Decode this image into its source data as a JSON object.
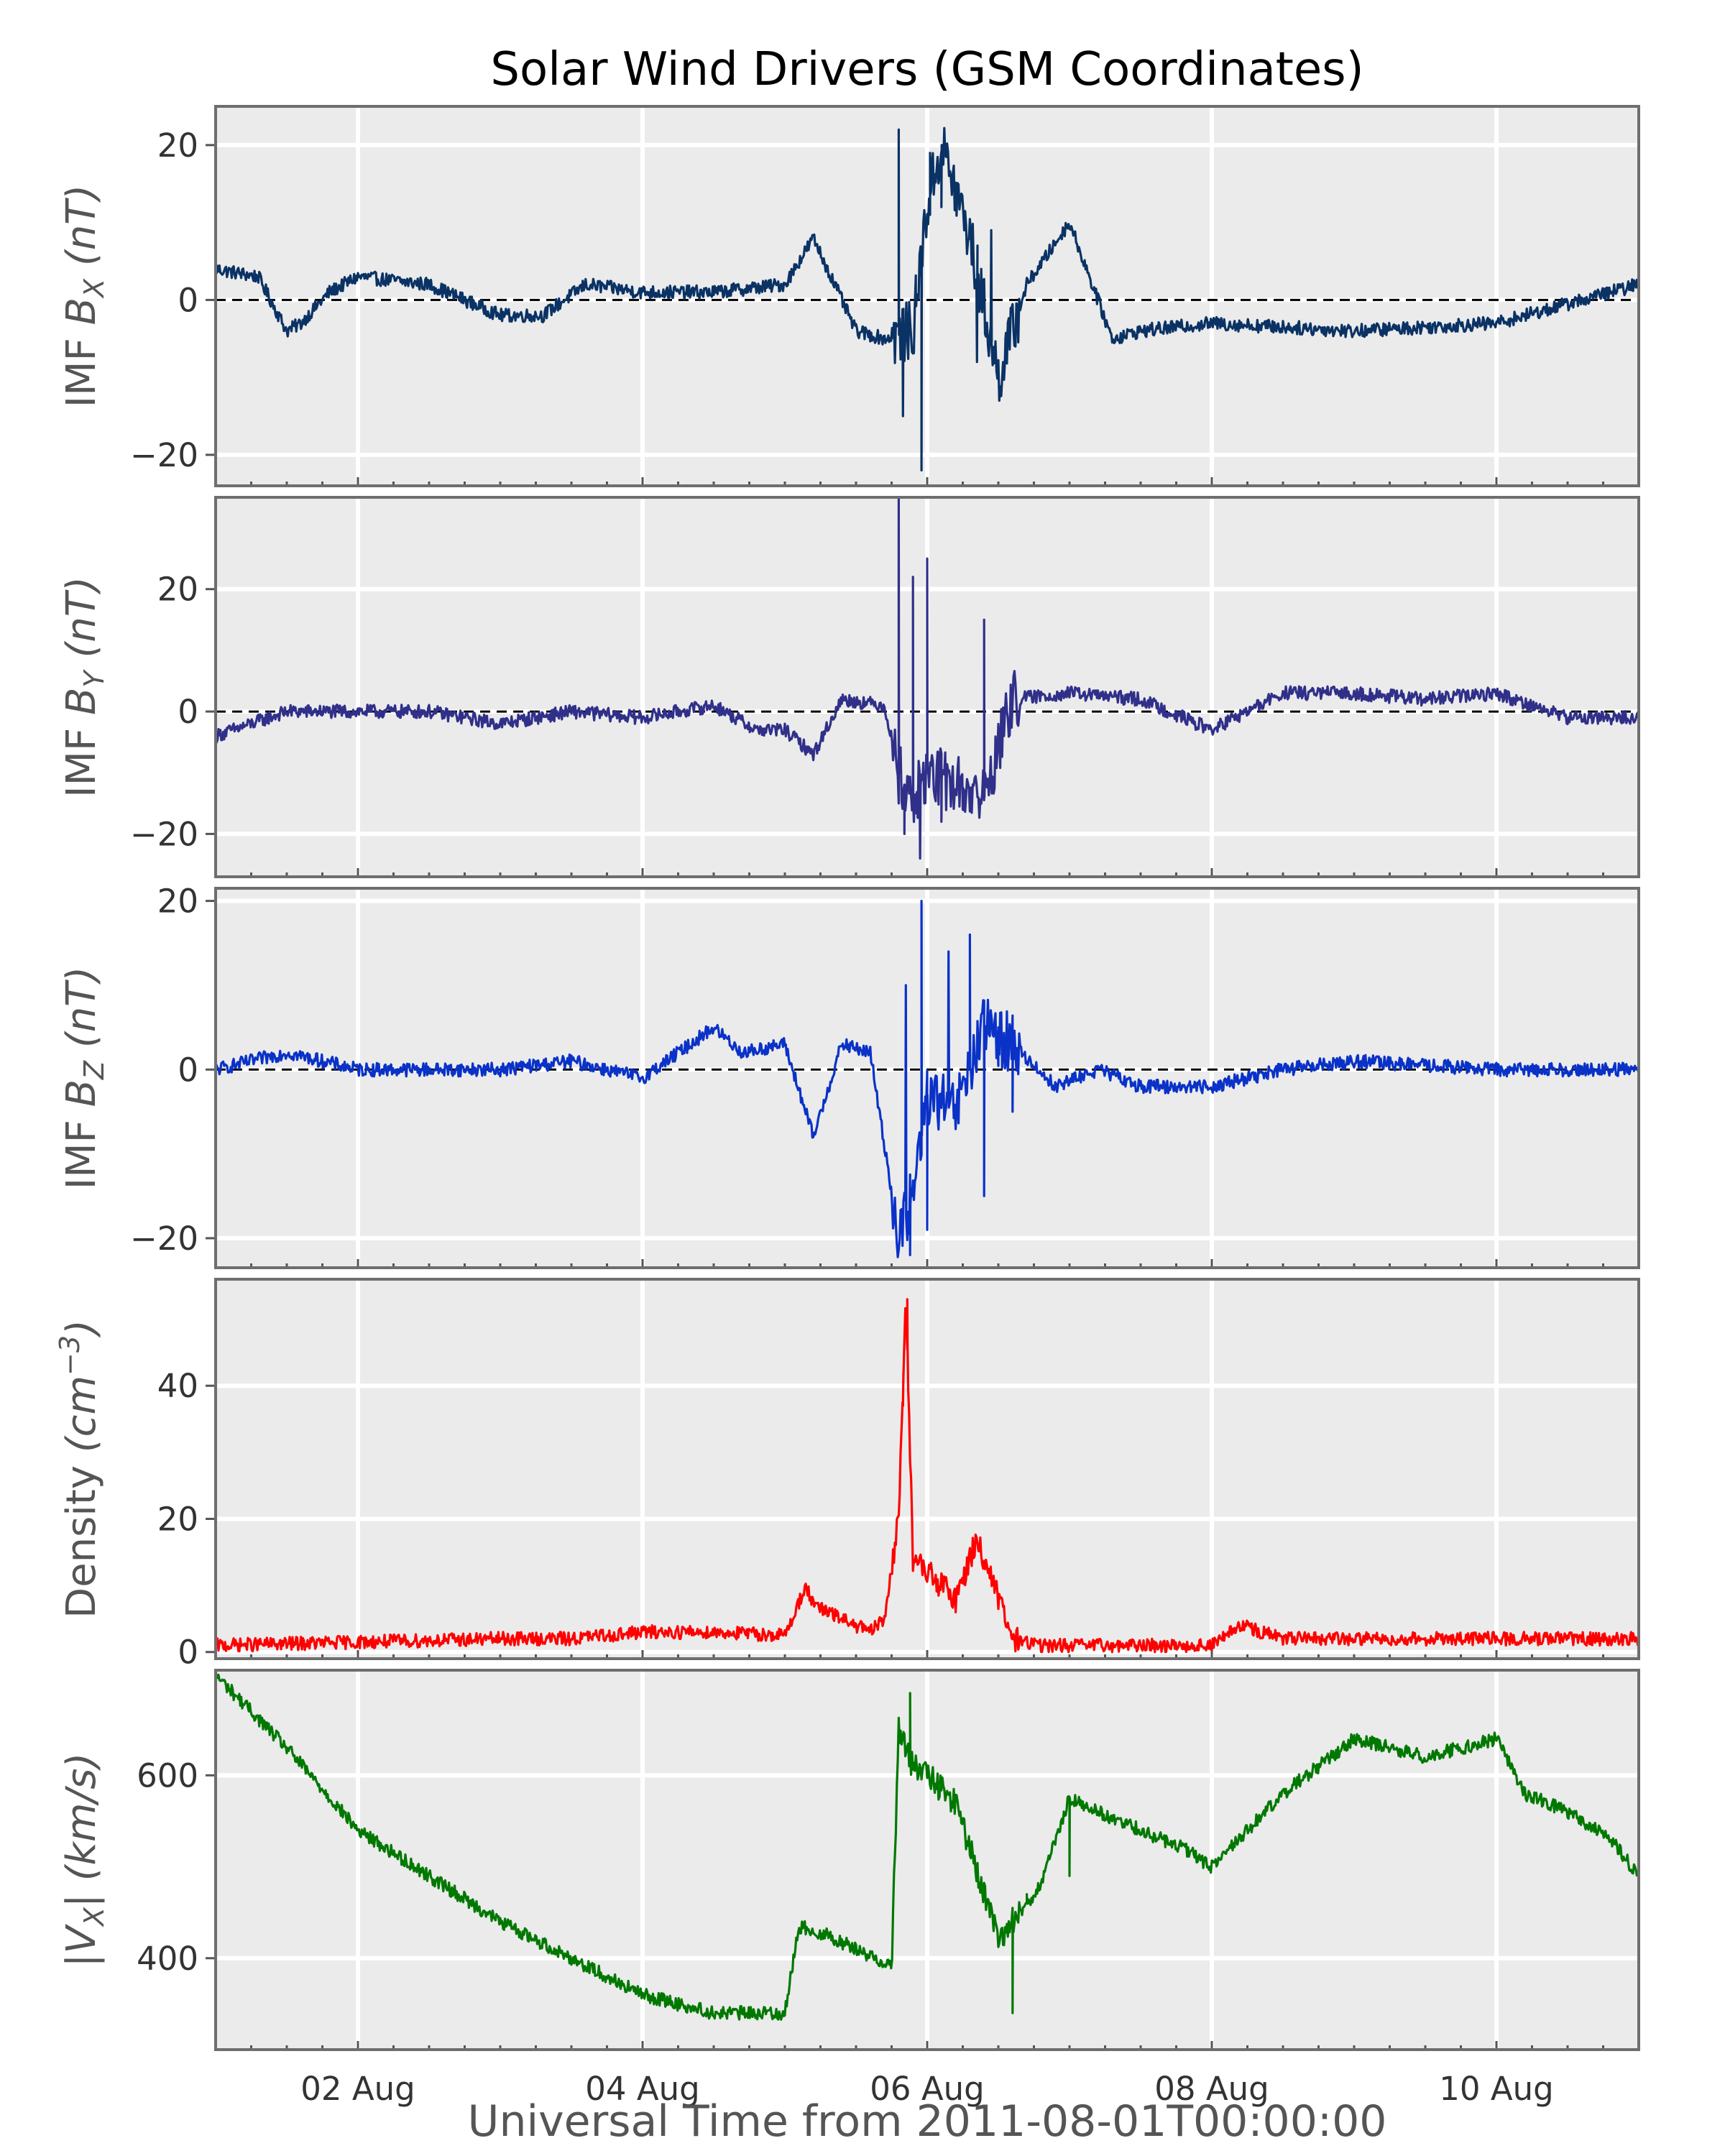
{
  "colors": {
    "background": "#ebebeb",
    "grid": "#ffffff",
    "frame": "#6e6e6e"
  },
  "chart_data": {
    "type": "line",
    "title": "Solar Wind Drivers (GSM Coordinates)",
    "xlabel": "Universal Time from 2011-08-01T00:00:00",
    "x_tick_labels": [
      "02 Aug",
      "04 Aug",
      "06 Aug",
      "08 Aug",
      "10 Aug"
    ],
    "x_ticks_days": [
      1,
      3,
      5,
      7,
      9
    ],
    "xlim_days": [
      0,
      10
    ],
    "grid": true,
    "panels": [
      {
        "ylabel": "IMF B_X (nT)",
        "ylabel_main": "IMF ",
        "ylabel_var": "B",
        "ylabel_sub": "X",
        "ylabel_unit": " (nT)",
        "color": "#0a3264",
        "ylim": [
          -24,
          25
        ],
        "yticks": [
          -20,
          0,
          20
        ],
        "ytick_labels": [
          "−20",
          "0",
          "20"
        ],
        "zero_line": true,
        "series": [
          {
            "x": [
              0.0,
              0.3,
              0.5,
              0.6,
              0.8,
              1.0,
              1.5,
              2.0,
              2.3,
              2.6,
              3.0,
              3.5,
              4.0,
              4.2,
              4.4,
              4.5,
              4.7,
              4.9,
              5.0,
              5.1,
              5.3,
              5.5,
              5.7,
              6.0,
              6.3,
              6.5,
              7.0,
              8.0,
              9.0,
              10.0
            ],
            "y": [
              4,
              3,
              -4,
              -3,
              1,
              3,
              2,
              -2,
              -2,
              2,
              1,
              1,
              2,
              8,
              0,
              -4,
              -5,
              -4,
              12,
              20,
              8,
              -10,
              2,
              10,
              -5,
              -4,
              -3,
              -4,
              -3,
              2
            ],
            "spikes": [
              [
                4.8,
                22
              ],
              [
                4.83,
                -15
              ],
              [
                4.92,
                0
              ],
              [
                4.96,
                -22
              ],
              [
                5.02,
                19
              ],
              [
                5.1,
                12
              ],
              [
                5.2,
                15
              ],
              [
                5.35,
                -8
              ],
              [
                5.45,
                9
              ],
              [
                5.55,
                -5
              ]
            ]
          }
        ]
      },
      {
        "ylabel": "IMF B_Y (nT)",
        "ylabel_main": "IMF ",
        "ylabel_var": "B",
        "ylabel_sub": "Y",
        "ylabel_unit": " (nT)",
        "color": "#30308a",
        "ylim": [
          -27,
          35
        ],
        "yticks": [
          -20,
          0,
          20
        ],
        "ytick_labels": [
          "−20",
          "0",
          "20"
        ],
        "zero_line": true,
        "series": [
          {
            "x": [
              0.0,
              0.5,
              1.0,
              1.5,
              2.0,
              2.5,
              3.0,
              3.5,
              3.8,
              4.0,
              4.2,
              4.4,
              4.7,
              4.8,
              4.9,
              5.0,
              5.2,
              5.4,
              5.6,
              6.0,
              6.5,
              7.0,
              7.5,
              8.0,
              8.5,
              9.0,
              9.5,
              10.0
            ],
            "y": [
              -4,
              0,
              0,
              0,
              -2,
              0,
              -1,
              1,
              -3,
              -3,
              -7,
              2,
              1,
              -10,
              -15,
              -10,
              -12,
              -14,
              2,
              3,
              2,
              -3,
              3,
              3,
              2,
              3,
              -1,
              -1
            ],
            "spikes": [
              [
                4.8,
                35
              ],
              [
                4.84,
                -20
              ],
              [
                4.9,
                22
              ],
              [
                4.95,
                -24
              ],
              [
                5.0,
                25
              ],
              [
                5.1,
                -18
              ],
              [
                5.4,
                15
              ],
              [
                5.25,
                -16
              ]
            ]
          }
        ]
      },
      {
        "ylabel": "IMF B_Z (nT)",
        "ylabel_main": "IMF ",
        "ylabel_var": "B",
        "ylabel_sub": "Z",
        "ylabel_unit": " (nT)",
        "color": "#0a32c8",
        "ylim": [
          -23.5,
          21.5
        ],
        "yticks": [
          -20,
          0,
          20
        ],
        "ytick_labels": [
          "−20",
          "0",
          "20"
        ],
        "zero_line": true,
        "series": [
          {
            "x": [
              0.0,
              0.5,
              1.0,
              1.5,
              2.0,
              2.5,
              3.0,
              3.5,
              3.7,
              4.0,
              4.2,
              4.4,
              4.6,
              4.8,
              4.9,
              5.0,
              5.2,
              5.4,
              5.6,
              5.9,
              6.2,
              6.5,
              7.0,
              7.5,
              8.0,
              9.0,
              10.0
            ],
            "y": [
              0,
              2,
              0,
              0,
              0,
              1,
              -1,
              5,
              2,
              3,
              -8,
              3,
              2,
              -20,
              -15,
              -3,
              -5,
              5,
              3,
              -2,
              0,
              -2,
              -2,
              0,
              1,
              0,
              0
            ],
            "spikes": [
              [
                4.85,
                10
              ],
              [
                4.88,
                -22
              ],
              [
                4.96,
                20
              ],
              [
                5.0,
                -19
              ],
              [
                5.15,
                14
              ],
              [
                5.3,
                16
              ],
              [
                5.4,
                -15
              ],
              [
                5.5,
                5
              ],
              [
                5.6,
                -5
              ]
            ]
          }
        ]
      },
      {
        "ylabel": "Density (cm^-3)",
        "ylabel_main": "Density ",
        "ylabel_var": "(cm",
        "ylabel_sup": "−3",
        "ylabel_unit": ")",
        "color": "#ff0000",
        "ylim": [
          -1,
          56
        ],
        "yticks": [
          0,
          20,
          40
        ],
        "ytick_labels": [
          "0",
          "20",
          "40"
        ],
        "zero_line": false,
        "series": [
          {
            "x": [
              0.0,
              1.0,
              2.0,
              2.5,
              3.0,
              3.5,
              4.0,
              4.15,
              4.2,
              4.4,
              4.6,
              4.7,
              4.8,
              4.85,
              4.9,
              5.0,
              5.2,
              5.35,
              5.5,
              5.6,
              5.8,
              6.0,
              6.5,
              7.0,
              7.2,
              7.5,
              8.0,
              9.0,
              10.0
            ],
            "y": [
              1,
              1.5,
              2,
              2,
              3,
              3,
              2.5,
              10,
              7,
              5,
              3,
              5,
              20,
              54,
              14,
              12,
              8,
              17,
              8,
              2,
              1,
              1,
              1,
              1,
              4,
              2,
              2,
              2,
              2
            ],
            "spikes": [
              [
                4.83,
                37
              ],
              [
                4.86,
                53
              ]
            ]
          }
        ]
      },
      {
        "ylabel": "|V_X| (km/s)",
        "ylabel_main": "|",
        "ylabel_var": "V",
        "ylabel_sub": "X",
        "ylabel_unit": "| (km/s)",
        "color": "#007800",
        "ylim": [
          300,
          715
        ],
        "yticks": [
          400,
          600
        ],
        "ytick_labels": [
          "400",
          "600"
        ],
        "zero_line": false,
        "series": [
          {
            "x": [
              0.0,
              0.5,
              1.0,
              1.5,
              2.0,
              2.5,
              3.0,
              3.5,
              4.0,
              4.1,
              4.3,
              4.7,
              4.75,
              4.8,
              4.9,
              5.0,
              5.2,
              5.5,
              5.8,
              6.0,
              6.2,
              6.8,
              7.0,
              7.5,
              8.0,
              8.5,
              9.0,
              9.2,
              9.5,
              9.8,
              10.0
            ],
            "y": [
              710,
              630,
              540,
              490,
              440,
              400,
              360,
              340,
              340,
              435,
              425,
              395,
              395,
              650,
              610,
              600,
              570,
              420,
              480,
              575,
              560,
              520,
              500,
              580,
              640,
              620,
              640,
              580,
              560,
              530,
              490
            ],
            "spikes": [
              [
                4.88,
                690
              ],
              [
                5.6,
                340
              ],
              [
                5.7,
                470
              ],
              [
                6.0,
                490
              ]
            ]
          }
        ]
      }
    ]
  }
}
